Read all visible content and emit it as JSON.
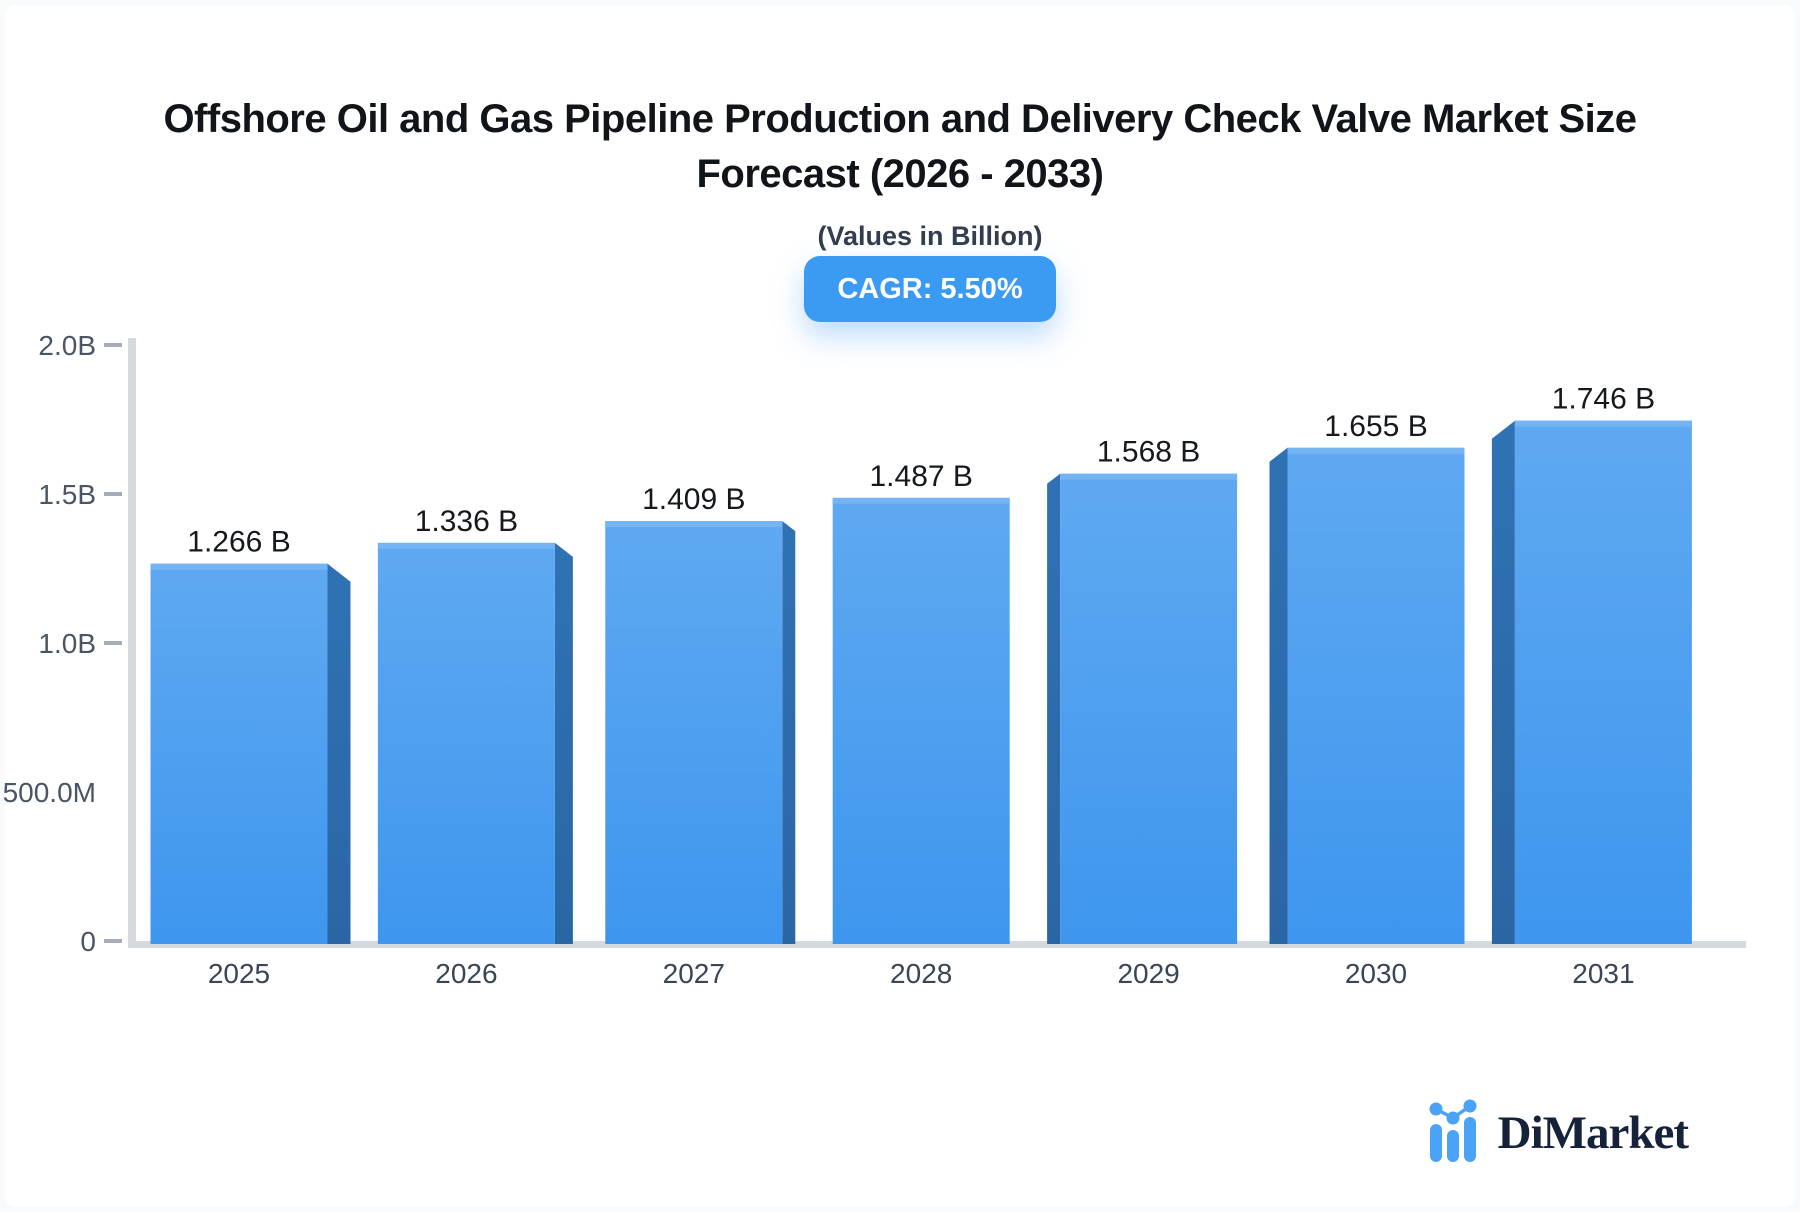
{
  "header": {
    "title_line1": "Offshore Oil and Gas Pipeline Production and Delivery Check Valve Market Size",
    "title_line2": "Forecast (2026 - 2033)",
    "subtitle": "(Values in Billion)",
    "cagr_badge": "CAGR: 5.50%"
  },
  "chart_data": {
    "type": "bar",
    "title": "Offshore Oil and Gas Pipeline Production and Delivery Check Valve Market Size Forecast (2026 - 2033)",
    "subtitle": "(Values in Billion)",
    "cagr_pct": 5.5,
    "categories": [
      "2025",
      "2026",
      "2027",
      "2028",
      "2029",
      "2030",
      "2031"
    ],
    "values": [
      1.266,
      1.336,
      1.409,
      1.487,
      1.568,
      1.655,
      1.746
    ],
    "value_labels": [
      "1.266 B",
      "1.336 B",
      "1.409 B",
      "1.487 B",
      "1.568 B",
      "1.655 B",
      "1.746 B"
    ],
    "unit": "Billion USD",
    "xlabel": "",
    "ylabel": "",
    "ylim": [
      0,
      2.0
    ],
    "yticks": [
      {
        "label": "2.0B",
        "value": 2.0,
        "dash": true
      },
      {
        "label": "1.5B",
        "value": 1.5,
        "dash": true
      },
      {
        "label": "1.0B",
        "value": 1.0,
        "dash": true
      },
      {
        "label": "500.0M",
        "value": 0.5,
        "dash": false
      },
      {
        "label": "0",
        "value": 0.0,
        "dash": true
      }
    ],
    "grid": false,
    "legend_position": "none",
    "bar_style": "3d-perspective-center"
  },
  "colors": {
    "bar_face_top": "#5fa9f1",
    "bar_face_bottom": "#3e96ee",
    "bar_top_highlight": "#74b4f3",
    "bar_side_top": "#2f72b4",
    "bar_side_bottom": "#2b66a4",
    "axis_line": "#d6d9dd",
    "tick_dash": "#a6adb6",
    "tick_text": "#4b5563",
    "category_text": "#3a4556",
    "value_text": "#15181d",
    "badge_bg": "#3b9bf3",
    "title_text": "#111418"
  },
  "branding": {
    "logo_text": "DiMarket",
    "logo_icon": "bar-chart-sparkline-icon",
    "logo_text_color": "#15223a",
    "logo_icon_color": "#4aa3f7"
  }
}
